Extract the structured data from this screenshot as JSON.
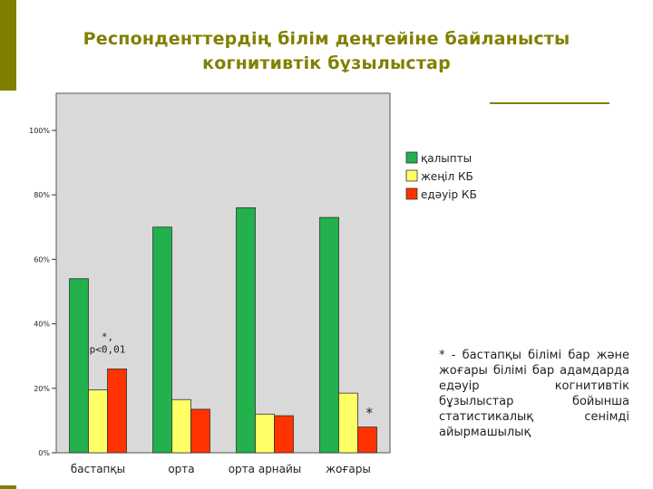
{
  "slide": {
    "title_line1": "Респонденттердің білім деңгейіне байланысты",
    "title_line2": "когнитивтік бұзылыстар",
    "footnote": "* - бастапқы білімі бар және жоғары білімі бар адамдарда едәуір когнитивтік бұзылыстар бойынша статистикалық сенімді айырмашылық"
  },
  "colors": {
    "accent": "#808000",
    "plot_bg": "#d9d9d9"
  },
  "chart_data": {
    "type": "bar",
    "categories": [
      "бастапқы",
      "орта",
      "орта арнайы",
      "жоғары"
    ],
    "series": [
      {
        "name": "қалыпты",
        "color": "#22b14c",
        "values": [
          54,
          70,
          76,
          73
        ]
      },
      {
        "name": "жеңіл КБ",
        "color": "#ffff66",
        "values": [
          19.5,
          16.5,
          12,
          18.5
        ]
      },
      {
        "name": "едәуір КБ",
        "color": "#ff3300",
        "values": [
          26,
          13.5,
          11.5,
          8
        ]
      }
    ],
    "yticks": [
      "0%",
      "20%",
      "40%",
      "60%",
      "80%",
      "100%"
    ],
    "ylim": [
      0,
      100
    ],
    "legend": "right",
    "annotations": [
      {
        "text": "*,",
        "category": 0,
        "y": 35
      },
      {
        "text": "p<0,01",
        "category": 0,
        "y": 31
      },
      {
        "text": "*",
        "category": 3,
        "y": 11
      }
    ]
  }
}
